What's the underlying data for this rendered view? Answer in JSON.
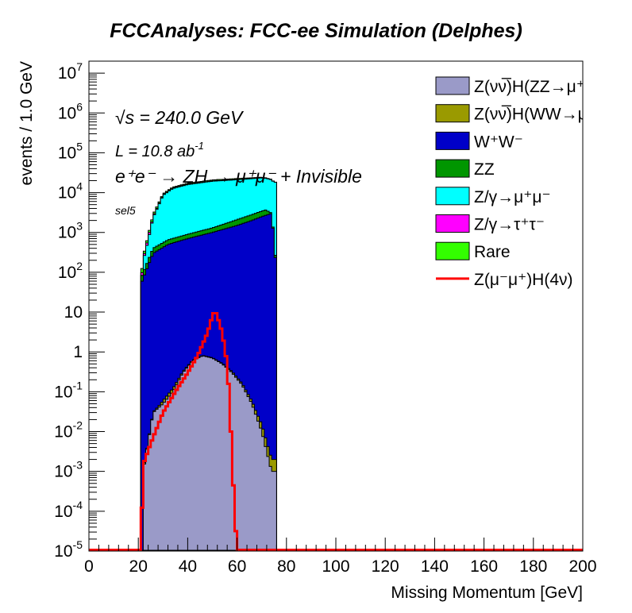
{
  "chart_data": {
    "type": "histogram",
    "title": "FCCAnalyses: FCC-ee Simulation (Delphes)",
    "xlabel": "Missing Momentum [GeV]",
    "ylabel": "events / 1.0 GeV",
    "xlim": [
      0,
      200
    ],
    "ylim": [
      1e-05,
      20000000.0
    ],
    "yscale": "log",
    "grid": false,
    "legend_position": "top-right",
    "bin_width": 1.0,
    "x_ticks": [
      "0",
      "20",
      "40",
      "60",
      "80",
      "100",
      "120",
      "140",
      "160",
      "180",
      "200"
    ],
    "y_ticks": [
      {
        "v": 1e-05,
        "base": "10",
        "exp": "-5"
      },
      {
        "v": 0.0001,
        "base": "10",
        "exp": "-4"
      },
      {
        "v": 0.001,
        "base": "10",
        "exp": "-3"
      },
      {
        "v": 0.01,
        "base": "10",
        "exp": "-2"
      },
      {
        "v": 0.1,
        "base": "10",
        "exp": "-1"
      },
      {
        "v": 1,
        "base": "1",
        "exp": ""
      },
      {
        "v": 10,
        "base": "10",
        "exp": ""
      },
      {
        "v": 100,
        "base": "10",
        "exp": "2"
      },
      {
        "v": 1000.0,
        "base": "10",
        "exp": "3"
      },
      {
        "v": 10000.0,
        "base": "10",
        "exp": "4"
      },
      {
        "v": 100000.0,
        "base": "10",
        "exp": "5"
      },
      {
        "v": 1000000.0,
        "base": "10",
        "exp": "6"
      },
      {
        "v": 10000000.0,
        "base": "10",
        "exp": "7"
      }
    ],
    "annotations": {
      "sqrts_prefix": "√s",
      "sqrts_value": " = 240.0 GeV",
      "lumi": "L = 10.8 ab",
      "lumi_exp": "-1",
      "process": "e⁺e⁻ → ZH → μ⁺μ⁻ + Invisible",
      "selection": "sel5"
    },
    "stack_order_bottom_to_top": [
      "ZnunuH_ZZ",
      "ZnunuH_WW",
      "WW",
      "ZZ",
      "Zmumu",
      "Ztautau",
      "Rare"
    ],
    "stacked_series": [
      {
        "id": "ZnunuH_ZZ",
        "name": "Z(νν̅)H(ZZ→μ⁺μ⁻ν⁺ν",
        "color": "#9a9ac8",
        "x_range": [
          22,
          76
        ],
        "approx_profile": [
          [
            22,
            0.001
          ],
          [
            26,
            0.03
          ],
          [
            30,
            0.05
          ],
          [
            34,
            0.1
          ],
          [
            38,
            0.3
          ],
          [
            42,
            0.6
          ],
          [
            46,
            0.8
          ],
          [
            50,
            0.7
          ],
          [
            54,
            0.5
          ],
          [
            58,
            0.3
          ],
          [
            62,
            0.15
          ],
          [
            66,
            0.05
          ],
          [
            70,
            0.01
          ],
          [
            74,
            0.001
          ]
        ]
      },
      {
        "id": "ZnunuH_WW",
        "name": "Z(νν̅)H(WW→μ⁺νμ",
        "color": "#9a9a00",
        "x_range": [
          22,
          76
        ],
        "approx_profile": [
          [
            22,
            0.0001
          ],
          [
            26,
            0.001
          ],
          [
            30,
            0.01
          ],
          [
            34,
            0.02
          ],
          [
            40,
            0.02
          ],
          [
            46,
            0.02
          ],
          [
            52,
            0.015
          ],
          [
            58,
            0.02
          ],
          [
            64,
            0.01
          ],
          [
            70,
            0.005
          ],
          [
            74,
            0.001
          ]
        ]
      },
      {
        "id": "WW",
        "name": "W⁺W⁻",
        "color": "#0000c8",
        "x_range": [
          21,
          76
        ],
        "approx_profile": [
          [
            21,
            50
          ],
          [
            26,
            300
          ],
          [
            32,
            500
          ],
          [
            40,
            700
          ],
          [
            50,
            1000
          ],
          [
            60,
            1500
          ],
          [
            66,
            2000
          ],
          [
            70,
            2500
          ],
          [
            74,
            3000
          ],
          [
            76,
            100
          ]
        ]
      },
      {
        "id": "ZZ",
        "name": "ZZ",
        "color": "#009600",
        "x_range": [
          21,
          76
        ],
        "approx_profile": [
          [
            21,
            20
          ],
          [
            26,
            100
          ],
          [
            32,
            150
          ],
          [
            40,
            200
          ],
          [
            50,
            300
          ],
          [
            60,
            600
          ],
          [
            66,
            800
          ],
          [
            72,
            1000
          ],
          [
            76,
            20
          ]
        ]
      },
      {
        "id": "Zmumu",
        "name": "Z/γ→μ⁺μ⁻",
        "color": "#00ffff",
        "x_range": [
          22,
          76
        ],
        "approx_profile": [
          [
            22,
            100
          ],
          [
            26,
            2000
          ],
          [
            30,
            8000
          ],
          [
            34,
            12000
          ],
          [
            40,
            15000
          ],
          [
            50,
            18000
          ],
          [
            60,
            19000
          ],
          [
            70,
            20000
          ],
          [
            74,
            18000
          ]
        ]
      },
      {
        "id": "Ztautau",
        "name": "Z/γ→τ⁺τ⁻",
        "color": "#ff00ff",
        "x_range": [
          21,
          76
        ],
        "approx_profile": [
          [
            21,
            10
          ],
          [
            24,
            100
          ],
          [
            28,
            200
          ],
          [
            32,
            300
          ],
          [
            40,
            450
          ],
          [
            50,
            400
          ],
          [
            60,
            350
          ],
          [
            66,
            200
          ],
          [
            70,
            100
          ],
          [
            74,
            30
          ],
          [
            76,
            5
          ]
        ]
      },
      {
        "id": "Rare",
        "name": "Rare",
        "color": "#33ff00",
        "x_range": [
          21,
          76
        ],
        "approx_profile": [
          [
            21,
            20
          ],
          [
            26,
            300
          ],
          [
            32,
            600
          ],
          [
            40,
            900
          ],
          [
            50,
            1100
          ],
          [
            60,
            1200
          ],
          [
            66,
            1000
          ],
          [
            70,
            800
          ],
          [
            74,
            400
          ],
          [
            76,
            40
          ]
        ]
      }
    ],
    "overlay_series": [
      {
        "id": "signal",
        "name": "Z(μ⁻μ⁺)H(4ν)",
        "color": "#ff0000",
        "type": "step-line",
        "x_range": [
          21,
          60
        ],
        "approx_profile": [
          [
            21,
            1e-05
          ],
          [
            22,
            0.0015
          ],
          [
            25,
            0.005
          ],
          [
            30,
            0.03
          ],
          [
            35,
            0.1
          ],
          [
            40,
            0.3
          ],
          [
            44,
            0.8
          ],
          [
            48,
            3
          ],
          [
            50,
            8
          ],
          [
            51,
            11
          ],
          [
            52,
            8
          ],
          [
            54,
            3
          ],
          [
            56,
            0.5
          ],
          [
            57,
            0.05
          ],
          [
            58,
            0.002
          ],
          [
            59,
            0.0001
          ],
          [
            60,
            1e-05
          ]
        ]
      }
    ],
    "legend_order": [
      "ZnunuH_ZZ",
      "ZnunuH_WW",
      "WW",
      "ZZ",
      "Zmumu",
      "Ztautau",
      "Rare",
      "signal"
    ]
  }
}
